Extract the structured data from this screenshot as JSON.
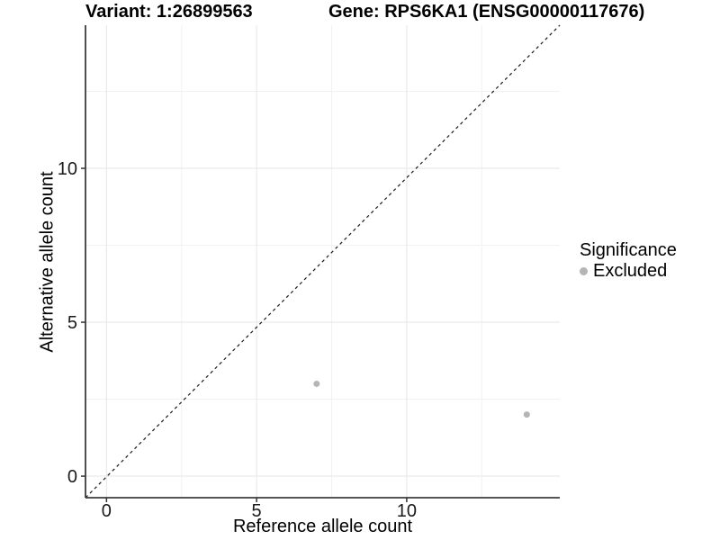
{
  "titles": {
    "variant": "Variant: 1:26899563",
    "gene": "Gene: RPS6KA1 (ENSG00000117676)"
  },
  "legend": {
    "title": "Significance",
    "position": "right",
    "items": [
      {
        "label": "Excluded",
        "color": "#b5b5b5",
        "shape": "circle"
      }
    ]
  },
  "chart_data": {
    "type": "scatter",
    "title": "Variant: 1:26899563 / Gene: RPS6KA1 (ENSG00000117676)",
    "xlabel": "Reference allele count",
    "ylabel": "Alternative allele count",
    "xlim": [
      -0.7,
      15.1
    ],
    "ylim": [
      -0.7,
      14.65
    ],
    "x_ticks": [
      0,
      5,
      10
    ],
    "y_ticks": [
      0,
      5,
      10
    ],
    "x_minor_ticks": [
      2.5,
      7.5,
      12.5
    ],
    "y_minor_ticks": [
      2.5,
      7.5,
      12.5
    ],
    "grid": true,
    "legend_position": "right",
    "series": [
      {
        "name": "Excluded",
        "color": "#b5b5b5",
        "points": [
          {
            "x": 7,
            "y": 3
          },
          {
            "x": 14,
            "y": 2
          }
        ]
      }
    ],
    "reference_line": {
      "type": "identity",
      "slope": 1,
      "intercept": 0,
      "style": "dashed",
      "color": "#1a1a1a"
    }
  },
  "colors": {
    "background": "#ffffff",
    "grid_major": "#e6e6e6",
    "grid_minor": "#f2f2f2",
    "axis_line": "#3d3d3d",
    "tick_mark": "#333333",
    "text": "#000000",
    "point": "#b5b5b5"
  }
}
